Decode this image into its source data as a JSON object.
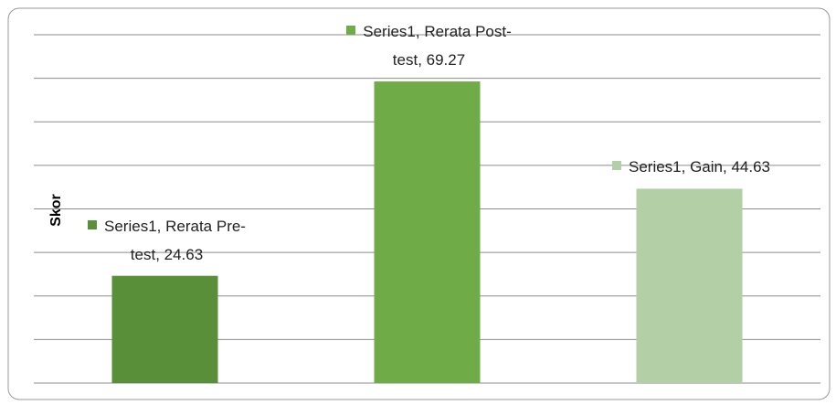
{
  "chart_data": {
    "type": "bar",
    "y_label": "Skor",
    "categories": [
      "Rerata Pre-test",
      "Rerata Post-test",
      "Gain"
    ],
    "series": [
      {
        "name": "Series1",
        "colors": [
          "#5a8f3a",
          "#6fac47",
          "#b3cfa6"
        ],
        "values": [
          24.63,
          69.27,
          44.63
        ],
        "value_labels": [
          "Series1, Rerata Pre-test, 24.63",
          "Series1, Rerata Post-test, 69.27",
          "Series1, Gain, 44.63"
        ]
      }
    ],
    "ylim": [
      0,
      80
    ],
    "yticks": [
      0,
      10,
      20,
      30,
      40,
      50,
      60,
      70,
      80
    ],
    "grid": true
  }
}
